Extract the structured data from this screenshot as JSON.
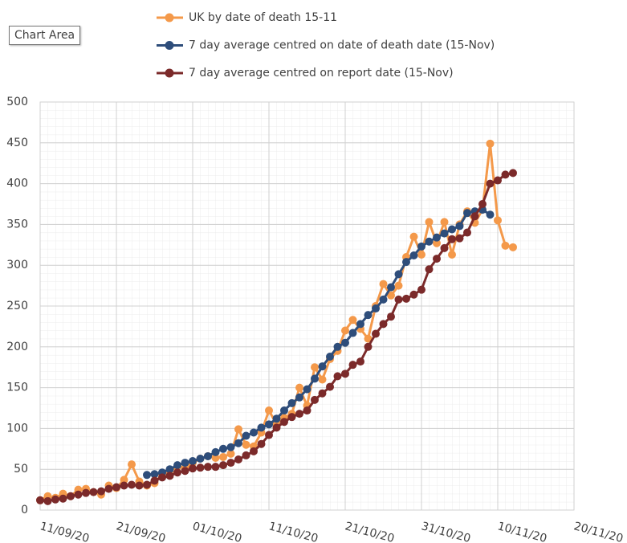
{
  "tooltip": "Chart Area",
  "chart_data": {
    "type": "line",
    "categories": [
      "11/09/20",
      null,
      null,
      null,
      null,
      null,
      null,
      null,
      null,
      null,
      "21/09/20",
      null,
      null,
      null,
      null,
      null,
      null,
      null,
      null,
      null,
      "01/10/20",
      null,
      null,
      null,
      null,
      null,
      null,
      null,
      null,
      null,
      "11/10/20",
      null,
      null,
      null,
      null,
      null,
      null,
      null,
      null,
      null,
      "21/10/20",
      null,
      null,
      null,
      null,
      null,
      null,
      null,
      null,
      null,
      "31/10/20",
      null,
      null,
      null,
      null,
      null,
      null,
      null,
      null,
      null,
      "10/11/20",
      null,
      null,
      null,
      null,
      null,
      null,
      null,
      null,
      null,
      "20/11/20"
    ],
    "series": [
      {
        "name": "UK by date of death 15-11",
        "color": "#f4994a",
        "values": [
          12,
          17,
          15,
          20,
          17,
          25,
          26,
          22,
          19,
          30,
          27,
          37,
          56,
          35,
          30,
          33,
          44,
          48,
          53,
          52,
          58,
          63,
          66,
          64,
          65,
          69,
          99,
          80,
          78,
          95,
          122,
          105,
          113,
          118,
          150,
          128,
          175,
          160,
          185,
          195,
          220,
          233,
          222,
          210,
          250,
          277,
          263,
          275,
          310,
          335,
          313,
          353,
          327,
          353,
          313,
          350,
          366,
          352,
          368,
          449,
          355,
          324,
          322,
          null,
          null,
          null,
          null,
          null,
          null,
          null,
          null
        ]
      },
      {
        "name": "7 day average centred on date of death date (15-Nov)",
        "color": "#2e4d7a",
        "values": [
          null,
          null,
          null,
          null,
          null,
          null,
          null,
          null,
          null,
          null,
          null,
          null,
          null,
          null,
          43,
          44,
          46,
          50,
          55,
          58,
          60,
          63,
          66,
          71,
          75,
          77,
          82,
          91,
          95,
          101,
          105,
          112,
          122,
          131,
          138,
          148,
          161,
          176,
          188,
          200,
          205,
          217,
          228,
          239,
          247,
          258,
          273,
          289,
          304,
          312,
          323,
          329,
          334,
          339,
          344,
          348,
          364,
          366,
          368,
          362,
          null,
          null,
          null,
          null,
          null,
          null,
          null,
          null,
          null,
          null,
          null
        ]
      },
      {
        "name": "7 day average centred on report date (15-Nov)",
        "color": "#7b2a2a",
        "values": [
          12,
          11,
          13,
          14,
          17,
          19,
          21,
          22,
          23,
          26,
          28,
          30,
          31,
          30,
          31,
          36,
          40,
          42,
          46,
          48,
          51,
          52,
          53,
          53,
          55,
          58,
          62,
          67,
          72,
          81,
          92,
          101,
          108,
          114,
          118,
          122,
          135,
          143,
          151,
          164,
          167,
          178,
          182,
          200,
          216,
          228,
          237,
          258,
          259,
          264,
          270,
          295,
          308,
          321,
          332,
          333,
          340,
          360,
          375,
          400,
          404,
          411,
          413,
          null,
          null,
          null,
          null,
          null,
          null,
          null,
          null
        ]
      }
    ],
    "ylim": [
      0,
      500
    ],
    "yticks": [
      0,
      50,
      100,
      150,
      200,
      250,
      300,
      350,
      400,
      450,
      500
    ],
    "grid": true
  }
}
